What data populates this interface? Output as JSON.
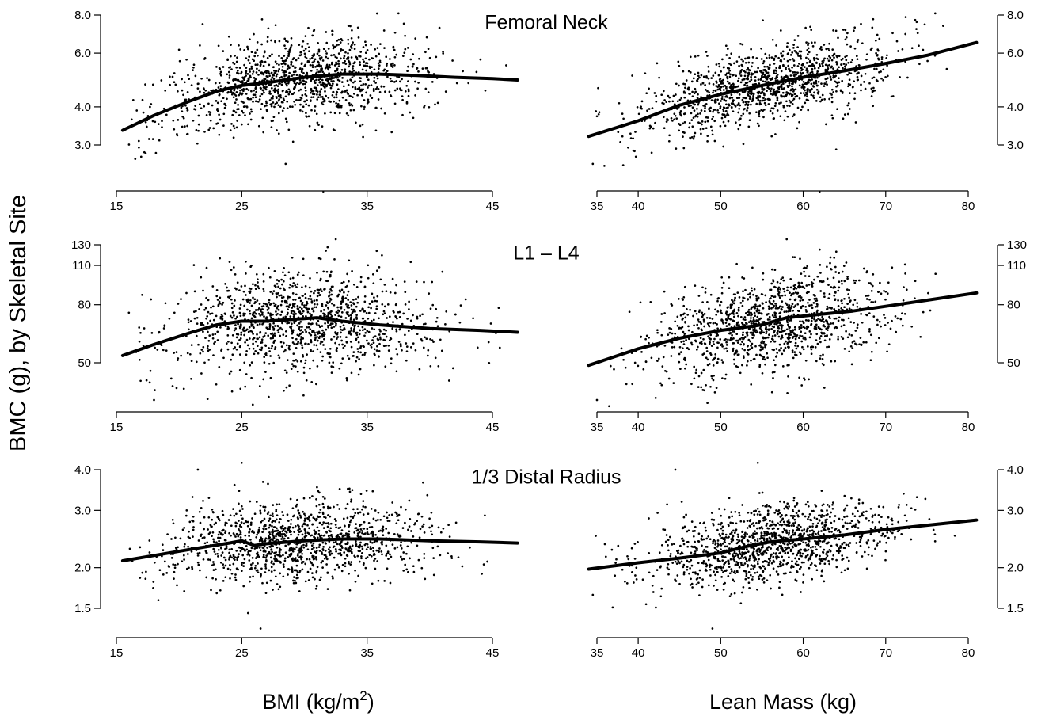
{
  "figure": {
    "y_axis_title": "BMC (g), by Skeletal Site",
    "x_axis_title_left": {
      "main": "BMI (kg/m",
      "sup": "2",
      "end": ")"
    },
    "x_axis_title_right": "Lean Mass (kg)"
  },
  "chart_data": [
    {
      "type": "scatter",
      "title": "Femoral Neck",
      "xlabel": "BMI (kg/m2)",
      "ylabel": "BMC (g), by Skeletal Site",
      "xlim": [
        15,
        47
      ],
      "ylim": [
        2.3,
        8.0
      ],
      "y_scale": "log",
      "xticks": [
        15,
        25,
        35,
        45
      ],
      "yticks": [
        3.0,
        4.0,
        6.0,
        8.0
      ],
      "ytick_labels": [
        "3.0",
        "4.0",
        "6.0",
        "8.0"
      ],
      "yaxis_side": "left",
      "grid": false,
      "n_points": 1250,
      "x_center": 29.5,
      "x_sd": 5.2,
      "smooth_curve": [
        [
          15.5,
          3.35
        ],
        [
          18,
          3.75
        ],
        [
          21,
          4.2
        ],
        [
          23,
          4.5
        ],
        [
          25,
          4.7
        ],
        [
          27,
          4.8
        ],
        [
          30,
          5.0
        ],
        [
          33,
          5.12
        ],
        [
          36,
          5.12
        ],
        [
          39,
          5.07
        ],
        [
          42,
          5.0
        ],
        [
          45,
          4.95
        ],
        [
          47,
          4.9
        ]
      ],
      "scatter_log_sd": 0.16,
      "outliers": [
        [
          31.5,
          2.1
        ],
        [
          37.5,
          8.1
        ],
        [
          16.5,
          2.7
        ],
        [
          28.5,
          2.6
        ]
      ]
    },
    {
      "type": "scatter",
      "title": "",
      "xlabel": "Lean Mass (kg)",
      "ylabel": "BMC (g), by Skeletal Site",
      "xlim": [
        34,
        81
      ],
      "ylim": [
        2.3,
        8.0
      ],
      "y_scale": "log",
      "xticks": [
        35,
        40,
        50,
        60,
        70,
        80
      ],
      "yticks": [
        3.0,
        4.0,
        6.0,
        8.0
      ],
      "ytick_labels": [
        "3.0",
        "4.0",
        "6.0",
        "8.0"
      ],
      "yaxis_side": "right",
      "grid": false,
      "n_points": 1250,
      "x_center": 56,
      "x_sd": 7.5,
      "smooth_curve": [
        [
          34,
          3.2
        ],
        [
          40,
          3.6
        ],
        [
          45,
          4.05
        ],
        [
          50,
          4.4
        ],
        [
          55,
          4.7
        ],
        [
          60,
          5.0
        ],
        [
          65,
          5.25
        ],
        [
          70,
          5.55
        ],
        [
          75,
          5.9
        ],
        [
          81,
          6.5
        ]
      ],
      "scatter_log_sd": 0.14,
      "outliers": [
        [
          62,
          2.1
        ],
        [
          76,
          8.1
        ],
        [
          64,
          2.9
        ],
        [
          34.5,
          2.6
        ]
      ]
    },
    {
      "type": "scatter",
      "title": "L1 – L4",
      "xlabel": "BMI (kg/m2)",
      "ylabel": "BMC (g), by Skeletal Site",
      "xlim": [
        15,
        47
      ],
      "ylim": [
        35,
        130
      ],
      "y_scale": "log",
      "xticks": [
        15,
        25,
        35,
        45
      ],
      "yticks": [
        50,
        80,
        110,
        130
      ],
      "ytick_labels": [
        "50",
        "80",
        "110",
        "130"
      ],
      "yaxis_side": "left",
      "grid": false,
      "n_points": 1250,
      "x_center": 29.5,
      "x_sd": 5.2,
      "smooth_curve": [
        [
          15.5,
          53
        ],
        [
          18,
          58
        ],
        [
          21,
          64
        ],
        [
          23,
          68
        ],
        [
          25,
          70
        ],
        [
          27,
          70
        ],
        [
          29,
          71
        ],
        [
          31,
          72
        ],
        [
          33,
          70
        ],
        [
          36,
          68
        ],
        [
          40,
          66
        ],
        [
          44,
          65
        ],
        [
          47,
          64
        ]
      ],
      "scatter_log_sd": 0.2,
      "outliers": [
        [
          18,
          37
        ],
        [
          32.5,
          136
        ],
        [
          16,
          75
        ],
        [
          45.5,
          78
        ]
      ]
    },
    {
      "type": "scatter",
      "title": "",
      "xlabel": "Lean Mass (kg)",
      "ylabel": "BMC (g), by Skeletal Site",
      "xlim": [
        34,
        81
      ],
      "ylim": [
        35,
        130
      ],
      "y_scale": "log",
      "xticks": [
        35,
        40,
        50,
        60,
        70,
        80
      ],
      "yticks": [
        50,
        80,
        110,
        130
      ],
      "ytick_labels": [
        "50",
        "80",
        "110",
        "130"
      ],
      "yaxis_side": "right",
      "grid": false,
      "n_points": 1250,
      "x_center": 56,
      "x_sd": 7.5,
      "smooth_curve": [
        [
          34,
          49
        ],
        [
          40,
          56
        ],
        [
          45,
          61
        ],
        [
          50,
          65
        ],
        [
          55,
          68
        ],
        [
          58,
          72
        ],
        [
          62,
          74
        ],
        [
          66,
          76
        ],
        [
          70,
          79
        ],
        [
          75,
          83
        ],
        [
          81,
          88
        ]
      ],
      "scatter_log_sd": 0.19,
      "outliers": [
        [
          35,
          37
        ],
        [
          58,
          136
        ],
        [
          48,
          40
        ],
        [
          62,
          125
        ]
      ]
    },
    {
      "type": "scatter",
      "title": "1/3 Distal Radius",
      "xlabel": "BMI (kg/m2)",
      "ylabel": "BMC (g), by Skeletal Site",
      "xlim": [
        15,
        47
      ],
      "ylim": [
        1.25,
        4.0
      ],
      "y_scale": "log",
      "xticks": [
        15,
        25,
        35,
        45
      ],
      "yticks": [
        1.5,
        2.0,
        3.0,
        4.0
      ],
      "ytick_labels": [
        "1.5",
        "2.0",
        "3.0",
        "4.0"
      ],
      "yaxis_side": "left",
      "grid": false,
      "n_points": 1250,
      "x_center": 29.5,
      "x_sd": 5.2,
      "smooth_curve": [
        [
          15.5,
          2.1
        ],
        [
          18,
          2.18
        ],
        [
          21,
          2.28
        ],
        [
          24,
          2.38
        ],
        [
          25,
          2.42
        ],
        [
          26,
          2.34
        ],
        [
          27,
          2.37
        ],
        [
          30,
          2.42
        ],
        [
          33,
          2.45
        ],
        [
          36,
          2.45
        ],
        [
          40,
          2.42
        ],
        [
          44,
          2.4
        ],
        [
          47,
          2.38
        ]
      ],
      "scatter_log_sd": 0.14,
      "outliers": [
        [
          25,
          4.2
        ],
        [
          26.5,
          1.3
        ],
        [
          21.5,
          4.0
        ],
        [
          25.5,
          1.45
        ]
      ]
    },
    {
      "type": "scatter",
      "title": "",
      "xlabel": "Lean Mass (kg)",
      "ylabel": "BMC (g), by Skeletal Site",
      "xlim": [
        34,
        81
      ],
      "ylim": [
        1.25,
        4.0
      ],
      "y_scale": "log",
      "xticks": [
        35,
        40,
        50,
        60,
        70,
        80
      ],
      "yticks": [
        1.5,
        2.0,
        3.0,
        4.0
      ],
      "ytick_labels": [
        "1.5",
        "2.0",
        "3.0",
        "4.0"
      ],
      "yaxis_side": "right",
      "grid": false,
      "n_points": 1250,
      "x_center": 56,
      "x_sd": 7.5,
      "smooth_curve": [
        [
          34,
          1.98
        ],
        [
          40,
          2.07
        ],
        [
          45,
          2.14
        ],
        [
          50,
          2.22
        ],
        [
          53,
          2.32
        ],
        [
          56,
          2.4
        ],
        [
          60,
          2.45
        ],
        [
          65,
          2.52
        ],
        [
          70,
          2.62
        ],
        [
          75,
          2.7
        ],
        [
          81,
          2.8
        ]
      ],
      "scatter_log_sd": 0.13,
      "outliers": [
        [
          54.5,
          4.2
        ],
        [
          44.5,
          4.0
        ],
        [
          49,
          1.3
        ],
        [
          34.5,
          1.65
        ]
      ]
    }
  ]
}
